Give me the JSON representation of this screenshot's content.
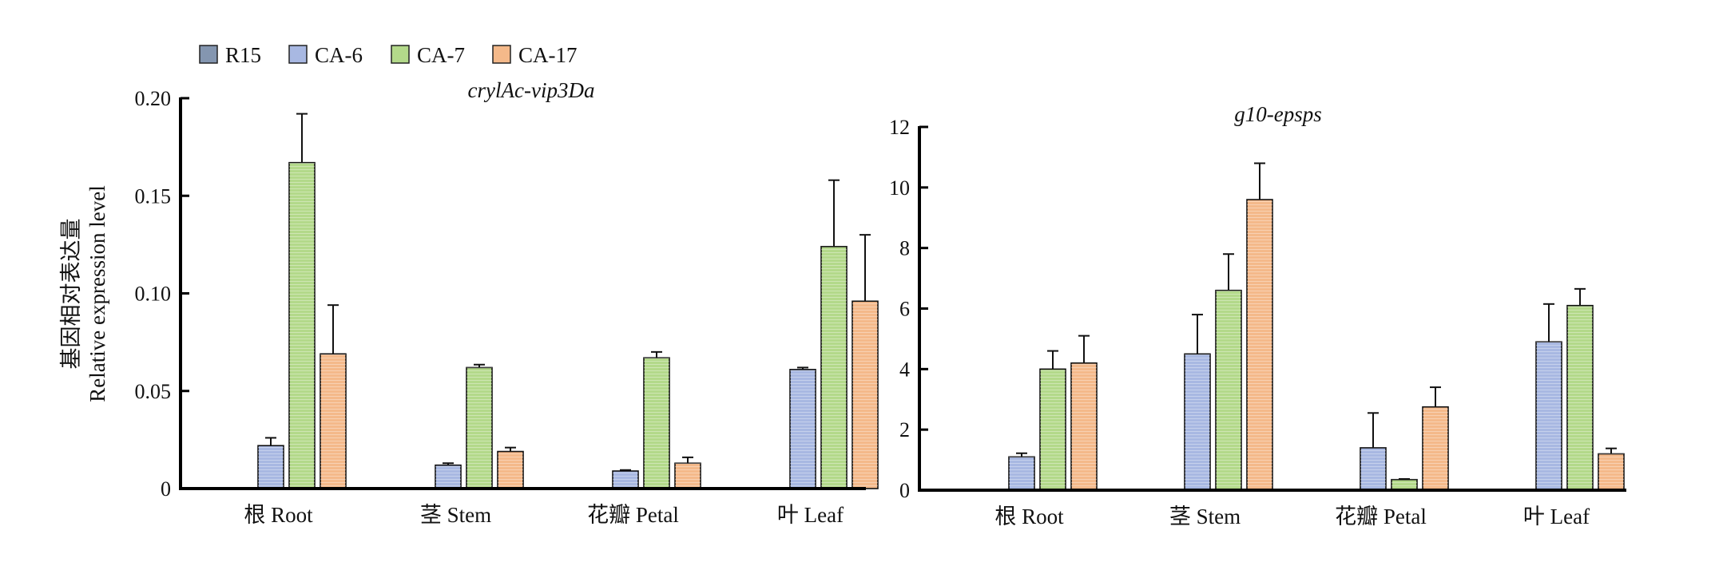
{
  "legend": {
    "items": [
      {
        "name": "R15",
        "color": "#8496b0"
      },
      {
        "name": "CA-6",
        "color": "#a8b8e2"
      },
      {
        "name": "CA-7",
        "color": "#b3d98a"
      },
      {
        "name": "CA-17",
        "color": "#f4b98a"
      }
    ]
  },
  "ylabel_line1": "基因相对表达量",
  "ylabel_line2": "Relative expression level",
  "chart_data": [
    {
      "type": "bar",
      "title": "crylAc-vip3Da",
      "categories": [
        "根 Root",
        "茎 Stem",
        "花瓣 Petal",
        "叶 Leaf"
      ],
      "ylim": [
        0,
        0.2
      ],
      "yticks": [
        "0",
        "0.05",
        "0.10",
        "0.15",
        "0.20"
      ],
      "series": [
        {
          "name": "R15",
          "values": [
            0,
            0,
            0,
            0
          ],
          "errors": [
            0,
            0,
            0,
            0
          ]
        },
        {
          "name": "CA-6",
          "values": [
            0.022,
            0.012,
            0.009,
            0.061
          ],
          "errors": [
            0.004,
            0.001,
            0.0005,
            0.001
          ]
        },
        {
          "name": "CA-7",
          "values": [
            0.167,
            0.062,
            0.067,
            0.124
          ],
          "errors": [
            0.025,
            0.0015,
            0.003,
            0.034
          ]
        },
        {
          "name": "CA-17",
          "values": [
            0.069,
            0.019,
            0.013,
            0.096
          ],
          "errors": [
            0.025,
            0.002,
            0.003,
            0.034
          ]
        }
      ]
    },
    {
      "type": "bar",
      "title": "g10-epsps",
      "categories": [
        "根 Root",
        "茎 Stem",
        "花瓣 Petal",
        "叶 Leaf"
      ],
      "ylim": [
        0,
        12
      ],
      "yticks": [
        "0",
        "2",
        "4",
        "6",
        "8",
        "10",
        "12"
      ],
      "series": [
        {
          "name": "R15",
          "values": [
            0,
            0,
            0,
            0
          ],
          "errors": [
            0,
            0,
            0,
            0
          ]
        },
        {
          "name": "CA-6",
          "values": [
            1.1,
            4.5,
            1.4,
            4.9
          ],
          "errors": [
            0.12,
            1.3,
            1.15,
            1.25
          ]
        },
        {
          "name": "CA-7",
          "values": [
            4.0,
            6.6,
            0.35,
            6.1
          ],
          "errors": [
            0.6,
            1.2,
            0.02,
            0.55
          ]
        },
        {
          "name": "CA-17",
          "values": [
            4.2,
            9.6,
            2.75,
            1.2
          ],
          "errors": [
            0.9,
            1.2,
            0.65,
            0.18
          ]
        }
      ]
    }
  ]
}
